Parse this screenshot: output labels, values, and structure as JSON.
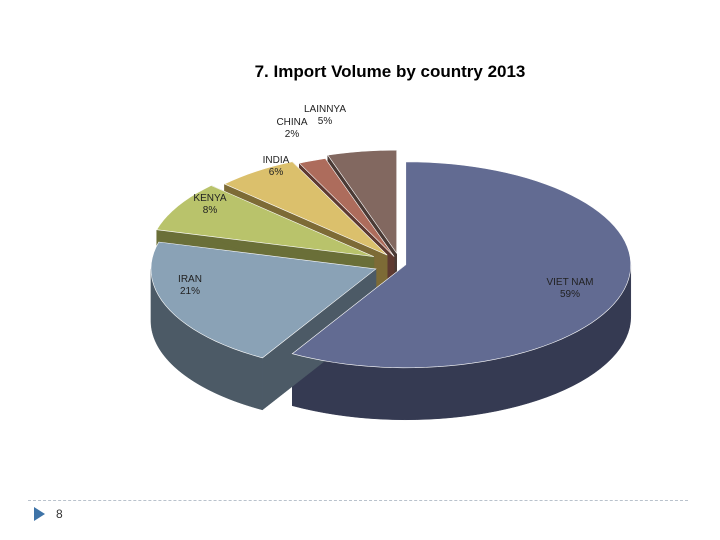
{
  "slide": {
    "page_number": "8",
    "accent_color": "#3f74a8"
  },
  "chart_data": {
    "type": "pie",
    "style": "3d-exploded",
    "title": "7. Import Volume by country 2013",
    "slices": [
      {
        "name": "VIET NAM",
        "label": "59%",
        "value": 59,
        "color": "#626b92",
        "side_color": "#353a52"
      },
      {
        "name": "IRAN",
        "label": "21%",
        "value": 21,
        "color": "#8aa2b6",
        "side_color": "#4c5a66"
      },
      {
        "name": "KENYA",
        "label": "8%",
        "value": 8,
        "color": "#b9c36b",
        "side_color": "#6a6f38"
      },
      {
        "name": "INDIA",
        "label": "6%",
        "value": 6,
        "color": "#dbc06c",
        "side_color": "#7d6b36"
      },
      {
        "name": "CHINA",
        "label": "2%",
        "value": 2,
        "color": "#ad6c5c",
        "side_color": "#5e3a31"
      },
      {
        "name": "LAINNYA",
        "label": "5%",
        "value": 5,
        "color": "#826860",
        "side_color": "#4a3a35"
      }
    ],
    "legend": "none"
  }
}
